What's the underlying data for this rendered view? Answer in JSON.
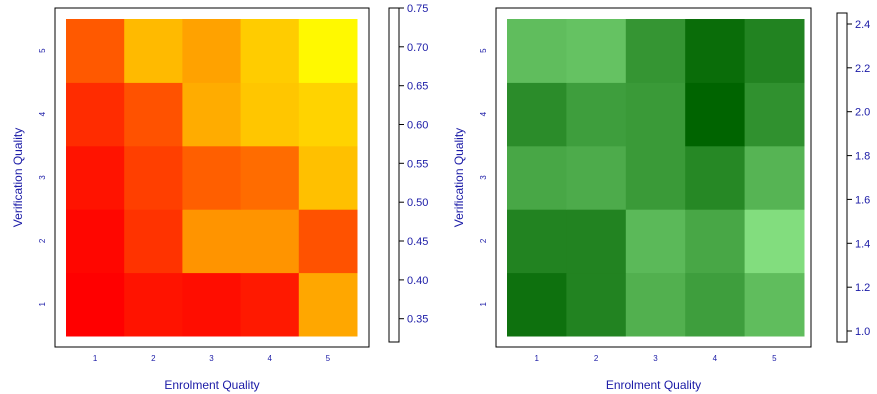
{
  "chart_data": [
    {
      "type": "heatmap",
      "xlabel": "Enrolment Quality",
      "ylabel": "Verification Quality",
      "x_categories": [
        "1",
        "2",
        "3",
        "4",
        "5"
      ],
      "y_categories": [
        "1",
        "2",
        "3",
        "4",
        "5"
      ],
      "values_by_row_bottom_to_top": [
        [
          0.32,
          0.35,
          0.34,
          0.36,
          0.6
        ],
        [
          0.33,
          0.4,
          0.56,
          0.56,
          0.45
        ],
        [
          0.35,
          0.42,
          0.47,
          0.49,
          0.65
        ],
        [
          0.39,
          0.45,
          0.61,
          0.66,
          0.68
        ],
        [
          0.46,
          0.64,
          0.59,
          0.67,
          0.74
        ]
      ],
      "colorbar": {
        "range": [
          0.32,
          0.75
        ],
        "ticks": [
          "0.35",
          "0.40",
          "0.45",
          "0.50",
          "0.55",
          "0.60",
          "0.65",
          "0.70",
          "0.75"
        ],
        "palette": "heat",
        "colors": [
          "#ff0000",
          "#ff4400",
          "#ff8800",
          "#ffbb00",
          "#ffff00"
        ]
      }
    },
    {
      "type": "heatmap",
      "xlabel": "Enrolment Quality",
      "ylabel": "Verification Quality",
      "x_categories": [
        "1",
        "2",
        "3",
        "4",
        "5"
      ],
      "y_categories": [
        "1",
        "2",
        "3",
        "4",
        "5"
      ],
      "values_by_row_bottom_to_top": [
        [
          2.3,
          2.1,
          1.6,
          1.8,
          1.45
        ],
        [
          2.1,
          2.1,
          1.5,
          1.7,
          1.1
        ],
        [
          1.7,
          1.65,
          1.85,
          2.05,
          1.55
        ],
        [
          2.0,
          1.8,
          1.85,
          2.45,
          1.95
        ],
        [
          1.45,
          1.4,
          1.9,
          2.35,
          2.1
        ]
      ],
      "colorbar": {
        "range": [
          0.95,
          2.45
        ],
        "ticks": [
          "1.0",
          "1.2",
          "1.4",
          "1.6",
          "1.8",
          "2.0",
          "2.2",
          "2.4"
        ],
        "palette": "greens",
        "colors": [
          "#90ea8c",
          "#006400"
        ]
      }
    }
  ],
  "colors": {
    "axis_text": "#1a1aa6",
    "frame": "#000000"
  }
}
